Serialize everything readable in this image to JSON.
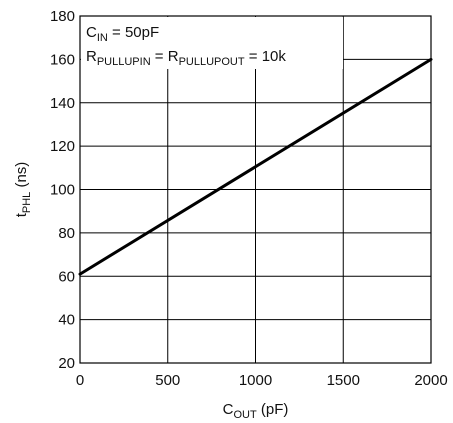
{
  "chart_data": {
    "type": "line",
    "xlabel": {
      "main": "C",
      "sub": "OUT",
      "unit": " (pF)"
    },
    "ylabel": {
      "main": "t",
      "sub": "PHL",
      "unit": " (ns)"
    },
    "xlim": [
      0,
      2000
    ],
    "ylim": [
      20,
      180
    ],
    "xticks": [
      0,
      500,
      1000,
      1500,
      2000
    ],
    "yticks": [
      20,
      40,
      60,
      80,
      100,
      120,
      140,
      160,
      180
    ],
    "grid": true,
    "annotations": [
      {
        "parts": [
          {
            "text": "C",
            "sub": false
          },
          {
            "text": "IN",
            "sub": true
          },
          {
            "text": " = 50pF",
            "sub": false
          }
        ]
      },
      {
        "parts": [
          {
            "text": "R",
            "sub": false
          },
          {
            "text": "PULLUPIN",
            "sub": true
          },
          {
            "text": " = R",
            "sub": false
          },
          {
            "text": "PULLUPOUT",
            "sub": true
          },
          {
            "text": " = 10k",
            "sub": false
          }
        ]
      }
    ],
    "series": [
      {
        "x": [
          0,
          2000
        ],
        "y": [
          61,
          160
        ]
      }
    ]
  }
}
